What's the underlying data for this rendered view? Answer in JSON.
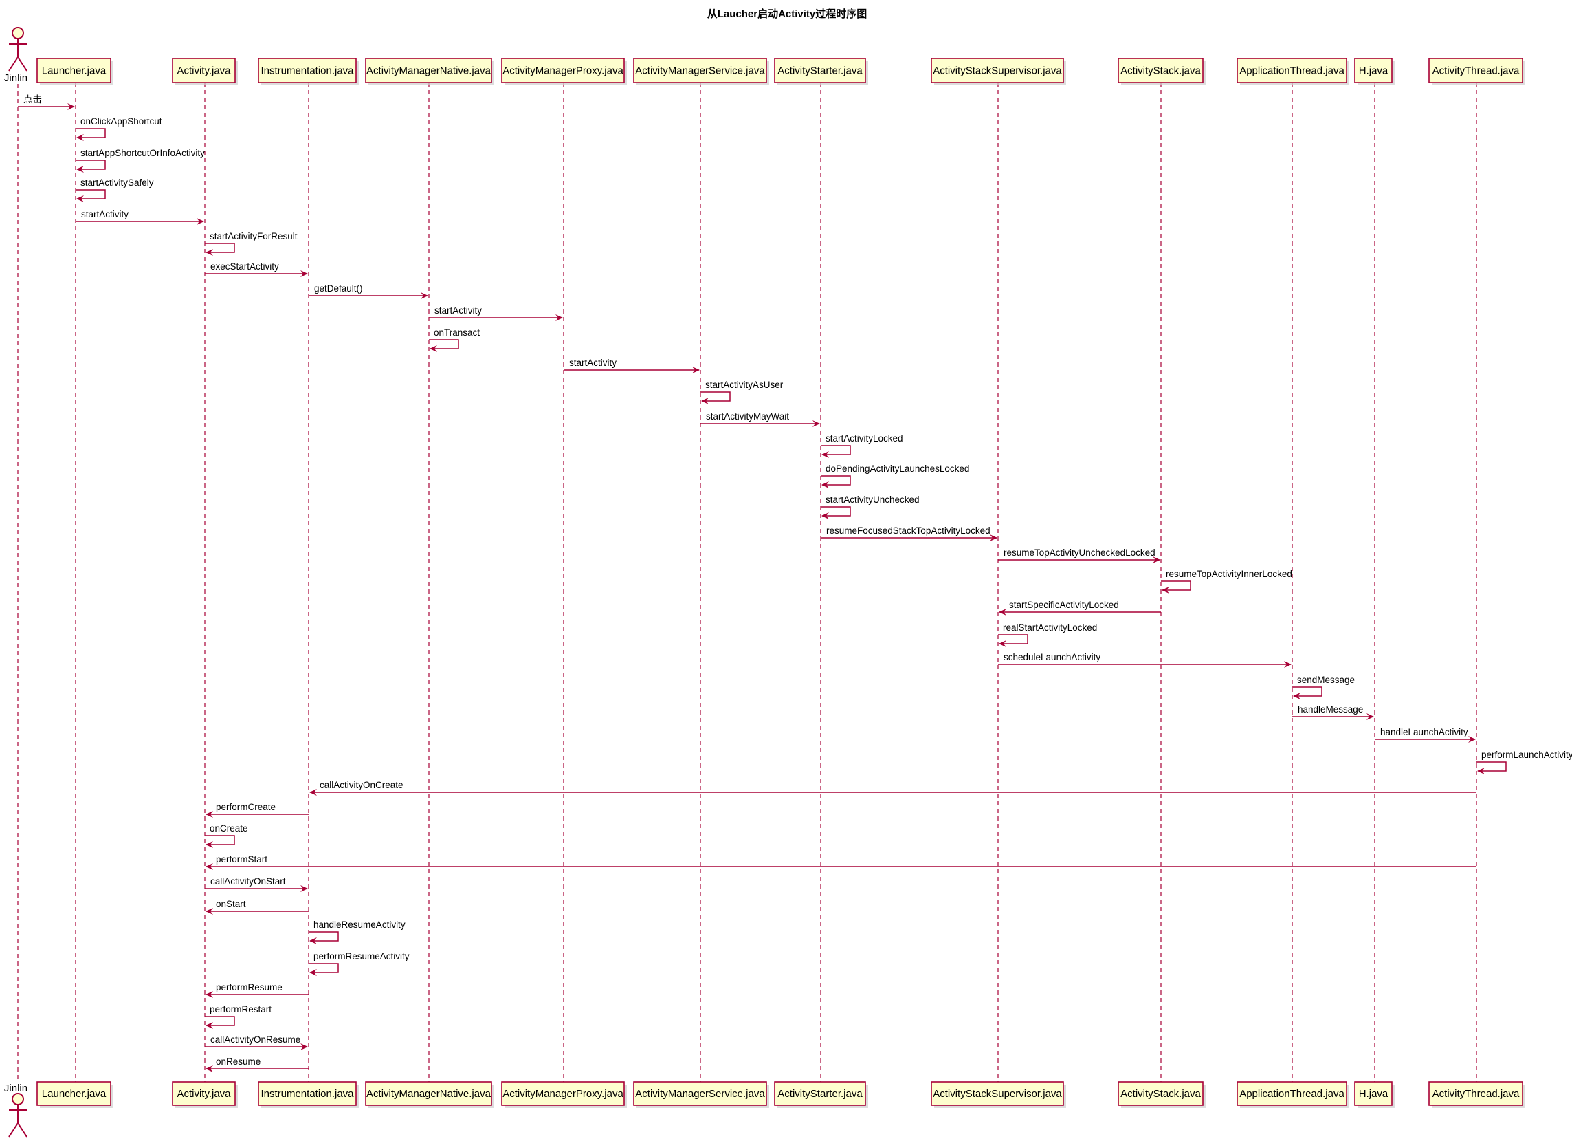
{
  "title": "从Laucher启动Activity过程时序图",
  "colors": {
    "line": "#A80036",
    "box_fill": "#FEFECE"
  },
  "actor": {
    "id": "jinlin",
    "name": "Jinlin"
  },
  "participants": [
    {
      "id": "launcher",
      "name": "Launcher.java"
    },
    {
      "id": "activity",
      "name": "Activity.java"
    },
    {
      "id": "instr",
      "name": "Instrumentation.java"
    },
    {
      "id": "amn",
      "name": "ActivityManagerNative.java"
    },
    {
      "id": "amp",
      "name": "ActivityManagerProxy.java"
    },
    {
      "id": "ams",
      "name": "ActivityManagerService.java"
    },
    {
      "id": "starter",
      "name": "ActivityStarter.java"
    },
    {
      "id": "ass",
      "name": "ActivityStackSupervisor.java"
    },
    {
      "id": "as",
      "name": "ActivityStack.java"
    },
    {
      "id": "appthread",
      "name": "ApplicationThread.java"
    },
    {
      "id": "h",
      "name": "H.java"
    },
    {
      "id": "at",
      "name": "ActivityThread.java"
    }
  ],
  "messages": [
    {
      "from": "jinlin",
      "to": "launcher",
      "label": "点击"
    },
    {
      "from": "launcher",
      "to": "launcher",
      "label": "onClickAppShortcut"
    },
    {
      "from": "launcher",
      "to": "launcher",
      "label": "startAppShortcutOrInfoActivity"
    },
    {
      "from": "launcher",
      "to": "launcher",
      "label": "startActivitySafely"
    },
    {
      "from": "launcher",
      "to": "activity",
      "label": "startActivity"
    },
    {
      "from": "activity",
      "to": "activity",
      "label": "startActivityForResult"
    },
    {
      "from": "activity",
      "to": "instr",
      "label": "execStartActivity"
    },
    {
      "from": "instr",
      "to": "amn",
      "label": "getDefault()"
    },
    {
      "from": "amn",
      "to": "amp",
      "label": "startActivity"
    },
    {
      "from": "amn",
      "to": "amn",
      "label": "onTransact"
    },
    {
      "from": "amp",
      "to": "ams",
      "label": "startActivity"
    },
    {
      "from": "ams",
      "to": "ams",
      "label": "startActivityAsUser"
    },
    {
      "from": "ams",
      "to": "starter",
      "label": "startActivityMayWait"
    },
    {
      "from": "starter",
      "to": "starter",
      "label": "startActivityLocked"
    },
    {
      "from": "starter",
      "to": "starter",
      "label": "doPendingActivityLaunchesLocked"
    },
    {
      "from": "starter",
      "to": "starter",
      "label": "startActivityUnchecked"
    },
    {
      "from": "starter",
      "to": "ass",
      "label": "resumeFocusedStackTopActivityLocked"
    },
    {
      "from": "ass",
      "to": "as",
      "label": "resumeTopActivityUncheckedLocked"
    },
    {
      "from": "as",
      "to": "as",
      "label": "resumeTopActivityInnerLocked"
    },
    {
      "from": "as",
      "to": "ass",
      "label": "startSpecificActivityLocked"
    },
    {
      "from": "ass",
      "to": "ass",
      "label": "realStartActivityLocked"
    },
    {
      "from": "ass",
      "to": "appthread",
      "label": "scheduleLaunchActivity"
    },
    {
      "from": "appthread",
      "to": "appthread",
      "label": "sendMessage"
    },
    {
      "from": "appthread",
      "to": "h",
      "label": "handleMessage"
    },
    {
      "from": "h",
      "to": "at",
      "label": "handleLaunchActivity"
    },
    {
      "from": "at",
      "to": "at",
      "label": "performLaunchActivity"
    },
    {
      "from": "at",
      "to": "instr",
      "label": "callActivityOnCreate"
    },
    {
      "from": "instr",
      "to": "activity",
      "label": "performCreate"
    },
    {
      "from": "activity",
      "to": "activity",
      "label": "onCreate"
    },
    {
      "from": "at",
      "to": "activity",
      "label": "performStart"
    },
    {
      "from": "activity",
      "to": "instr",
      "label": "callActivityOnStart"
    },
    {
      "from": "instr",
      "to": "activity",
      "label": "onStart"
    },
    {
      "from": "instr",
      "to": "instr",
      "label": "handleResumeActivity"
    },
    {
      "from": "instr",
      "to": "instr",
      "label": "performResumeActivity"
    },
    {
      "from": "instr",
      "to": "activity",
      "label": "performResume"
    },
    {
      "from": "activity",
      "to": "activity",
      "label": "performRestart"
    },
    {
      "from": "activity",
      "to": "instr",
      "label": "callActivityOnResume"
    },
    {
      "from": "instr",
      "to": "activity",
      "label": "onResume"
    }
  ]
}
